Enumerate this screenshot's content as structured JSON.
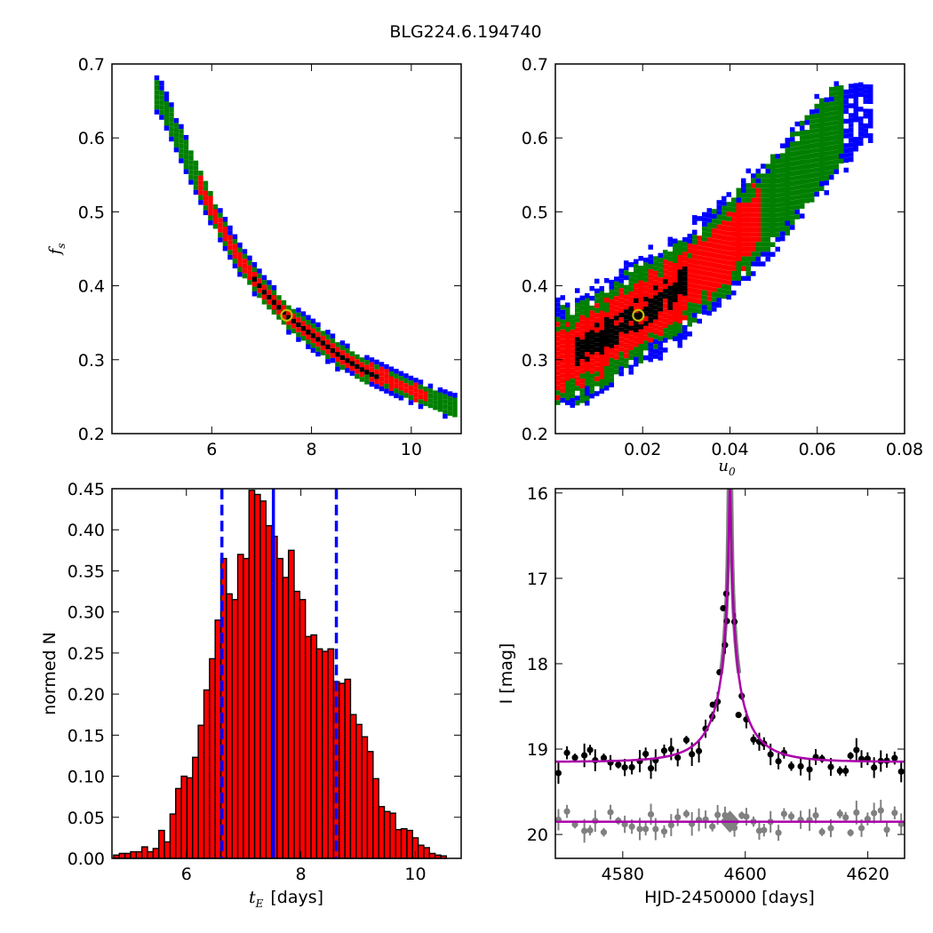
{
  "figure": {
    "title": "BLG224.6.194740"
  },
  "colors": {
    "blue": "#0000ff",
    "green": "#007f00",
    "red": "#ff0000",
    "black": "#000000",
    "marker": "#bfbf00",
    "model": "#aa00aa",
    "gray": "#808080"
  },
  "chart_data": [
    {
      "id": "fs_vs_tE",
      "type": "heatmap",
      "xlabel": "",
      "ylabel": "f",
      "ylabel_sub": "s",
      "xlim": [
        4.0,
        11.0
      ],
      "ylim": [
        0.2,
        0.7
      ],
      "xticks": [
        "6",
        "8",
        "10"
      ],
      "xtick_values": [
        6,
        8,
        10
      ],
      "yticks": [
        "0.2",
        "0.3",
        "0.4",
        "0.5",
        "0.6",
        "0.7"
      ],
      "ytick_values": [
        0.2,
        0.3,
        0.4,
        0.5,
        0.6,
        0.7
      ],
      "region_levels": [
        "blue",
        "green",
        "red",
        "black"
      ],
      "banana_ridge": {
        "x": [
          4.9,
          5.5,
          6.0,
          6.5,
          7.0,
          7.5,
          8.0,
          8.5,
          9.0,
          9.5,
          10.0,
          10.8
        ],
        "y": [
          0.66,
          0.57,
          0.5,
          0.44,
          0.395,
          0.36,
          0.335,
          0.31,
          0.29,
          0.275,
          0.26,
          0.24
        ]
      },
      "best_fit": {
        "x": 7.5,
        "y": 0.36
      }
    },
    {
      "id": "fs_vs_u0",
      "type": "heatmap",
      "xlabel": "u",
      "xlabel_sub": "0",
      "ylabel": "",
      "xlim": [
        0.0,
        0.08
      ],
      "ylim": [
        0.2,
        0.7
      ],
      "xticks": [
        "0.02",
        "0.04",
        "0.06",
        "0.08"
      ],
      "xtick_values": [
        0.02,
        0.04,
        0.06,
        0.08
      ],
      "yticks": [
        "0.2",
        "0.3",
        "0.4",
        "0.5",
        "0.6",
        "0.7"
      ],
      "ytick_values": [
        0.2,
        0.3,
        0.4,
        0.5,
        0.6,
        0.7
      ],
      "region_levels": [
        "blue",
        "green",
        "red",
        "black"
      ],
      "ridge": {
        "x": [
          0.0,
          0.01,
          0.02,
          0.03,
          0.04,
          0.05,
          0.06,
          0.07
        ],
        "y": [
          0.3,
          0.33,
          0.37,
          0.41,
          0.46,
          0.52,
          0.59,
          0.66
        ]
      },
      "best_fit": {
        "x": 0.019,
        "y": 0.36
      }
    },
    {
      "id": "tE_histogram",
      "type": "bar",
      "xlabel": "t",
      "xlabel_sub": "E",
      "xlabel_unit": "[days]",
      "ylabel": "normed N",
      "xlim": [
        4.7,
        10.8
      ],
      "ylim": [
        0.0,
        0.45
      ],
      "xticks": [
        "6",
        "8",
        "10"
      ],
      "xtick_values": [
        6,
        8,
        10
      ],
      "yticks": [
        "0.00",
        "0.05",
        "0.10",
        "0.15",
        "0.20",
        "0.25",
        "0.30",
        "0.35",
        "0.40",
        "0.45"
      ],
      "ytick_values": [
        0.0,
        0.05,
        0.1,
        0.15,
        0.2,
        0.25,
        0.3,
        0.35,
        0.4,
        0.45
      ],
      "bin_start": 4.73,
      "bin_width": 0.0985,
      "values": [
        0.004,
        0.006,
        0.006,
        0.008,
        0.008,
        0.014,
        0.008,
        0.012,
        0.034,
        0.02,
        0.054,
        0.085,
        0.1,
        0.098,
        0.123,
        0.162,
        0.205,
        0.243,
        0.29,
        0.365,
        0.322,
        0.315,
        0.37,
        0.365,
        0.448,
        0.443,
        0.435,
        0.405,
        0.392,
        0.365,
        0.342,
        0.375,
        0.325,
        0.315,
        0.27,
        0.272,
        0.255,
        0.252,
        0.255,
        0.215,
        0.213,
        0.218,
        0.175,
        0.163,
        0.148,
        0.13,
        0.097,
        0.063,
        0.057,
        0.055,
        0.035,
        0.036,
        0.034,
        0.025,
        0.016,
        0.013,
        0.006,
        0.004,
        0.003
      ],
      "vlines": [
        {
          "x": 7.52,
          "style": "solid"
        },
        {
          "x": 6.62,
          "style": "dashed"
        },
        {
          "x": 8.62,
          "style": "dashed"
        }
      ]
    },
    {
      "id": "lightcurve",
      "type": "scatter",
      "xlabel": "HJD-2450000 [days]",
      "ylabel": "I [mag]",
      "xlim": [
        4569.0,
        4626.0
      ],
      "ylim": [
        20.28,
        15.95
      ],
      "xticks": [
        "4580",
        "4600",
        "4620"
      ],
      "xtick_values": [
        4580,
        4600,
        4620
      ],
      "yticks": [
        "16",
        "17",
        "18",
        "19",
        "20"
      ],
      "ytick_values": [
        16,
        17,
        18,
        19,
        20
      ],
      "model": {
        "t0": 4597.5,
        "u0": 0.0192,
        "tE": 7.52,
        "baseline": 19.15
      },
      "residual_baseline": 19.85,
      "points_seed": 7
    }
  ]
}
